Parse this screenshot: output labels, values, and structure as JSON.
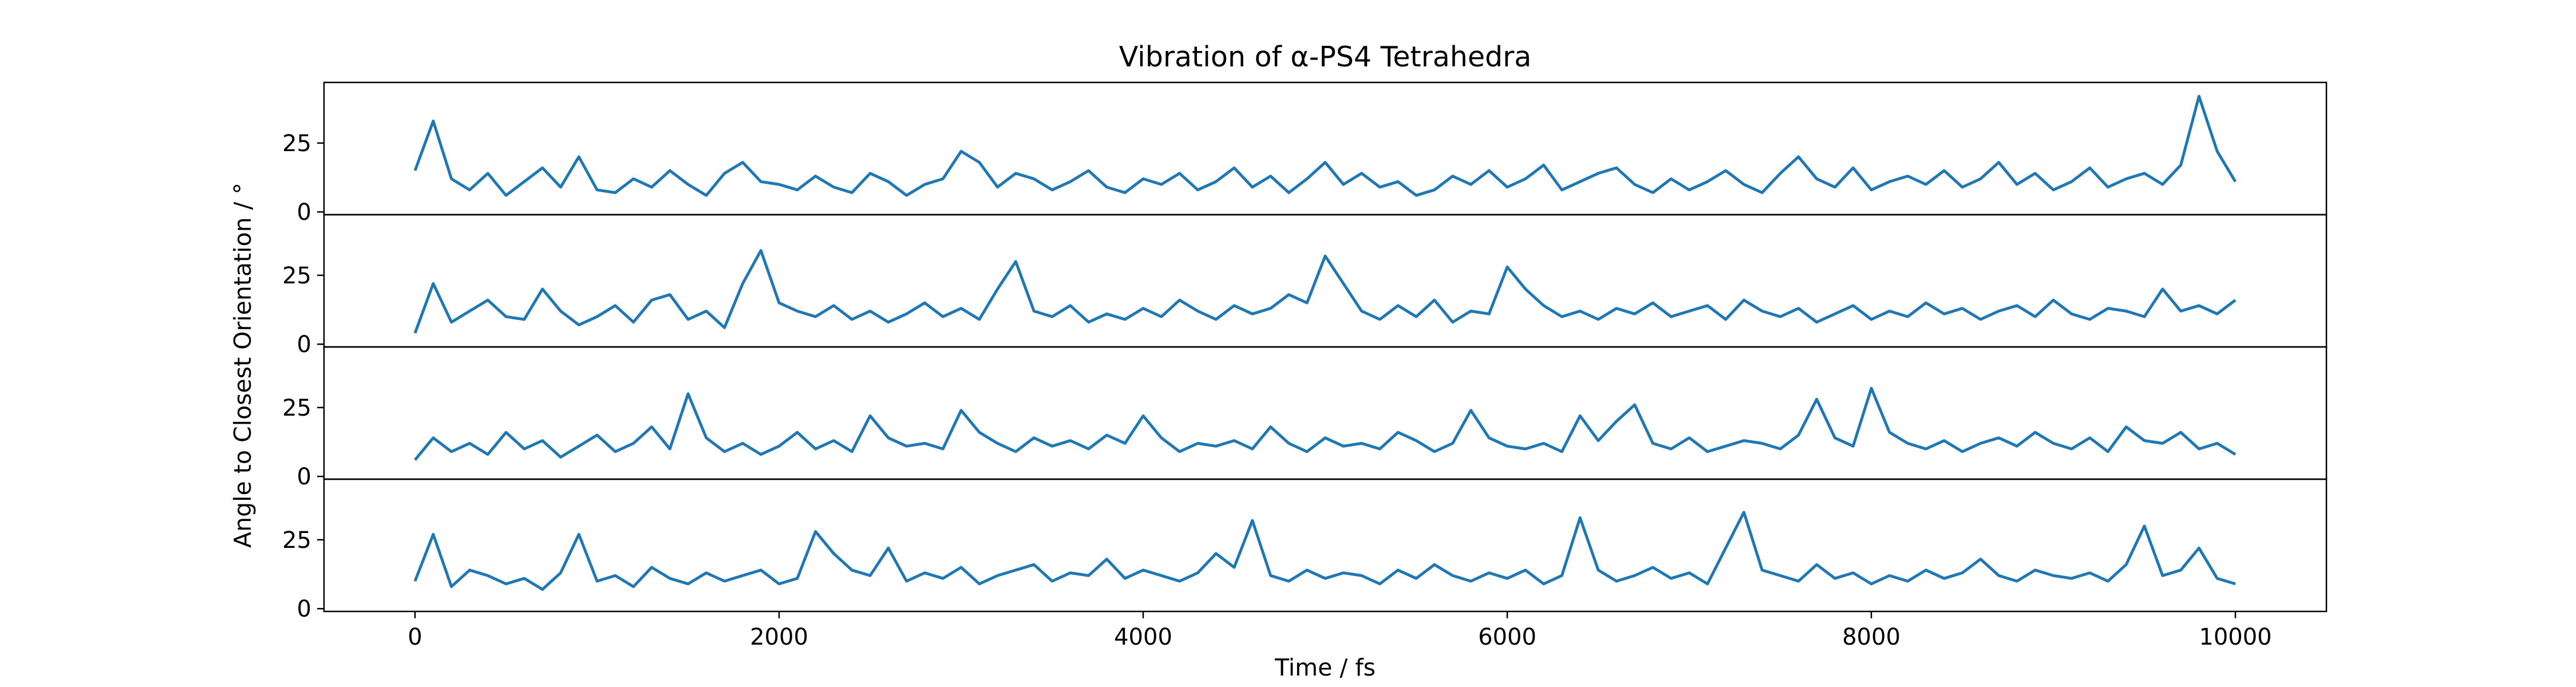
{
  "chart_data": {
    "type": "line",
    "title": "Vibration of α-PS4 Tetrahedra",
    "xlabel": "Time / fs",
    "ylabel": "Angle to Closest Orientation / °",
    "xlim": [
      -500,
      10500
    ],
    "ylim": [
      -1,
      47
    ],
    "xticks": [
      "0",
      "2000",
      "4000",
      "6000",
      "8000",
      "10000"
    ],
    "xtick_values": [
      0,
      2000,
      4000,
      6000,
      8000,
      10000
    ],
    "yticks": [
      "0",
      "25"
    ],
    "ytick_values": [
      0,
      25
    ],
    "grid": false,
    "line_color": "#1f77b4",
    "series": [
      {
        "x": [
          0,
          100,
          200,
          300,
          400,
          500,
          600,
          700,
          800,
          900,
          1000,
          1100,
          1200,
          1300,
          1400,
          1500,
          1600,
          1700,
          1800,
          1900,
          2000,
          2100,
          2200,
          2300,
          2400,
          2500,
          2600,
          2700,
          2800,
          2900,
          3000,
          3100,
          3200,
          3300,
          3400,
          3500,
          3600,
          3700,
          3800,
          3900,
          4000,
          4100,
          4200,
          4300,
          4400,
          4500,
          4600,
          4700,
          4800,
          4900,
          5000,
          5100,
          5200,
          5300,
          5400,
          5500,
          5600,
          5700,
          5800,
          5900,
          6000,
          6100,
          6200,
          6300,
          6400,
          6500,
          6600,
          6700,
          6800,
          6900,
          7000,
          7100,
          7200,
          7300,
          7400,
          7500,
          7600,
          7700,
          7800,
          7900,
          8000,
          8100,
          8200,
          8300,
          8400,
          8500,
          8600,
          8700,
          8800,
          8900,
          9000,
          9100,
          9200,
          9300,
          9400,
          9500,
          9600,
          9700,
          9800,
          9900,
          10000
        ],
        "y": [
          15,
          33,
          12,
          8,
          14,
          6,
          11,
          16,
          9,
          20,
          8,
          7,
          12,
          9,
          15,
          10,
          6,
          14,
          18,
          11,
          10,
          8,
          13,
          9,
          7,
          14,
          11,
          6,
          10,
          12,
          22,
          18,
          9,
          14,
          12,
          8,
          11,
          15,
          9,
          7,
          12,
          10,
          14,
          8,
          11,
          16,
          9,
          13,
          7,
          12,
          18,
          10,
          14,
          9,
          11,
          6,
          8,
          13,
          10,
          15,
          9,
          12,
          17,
          8,
          11,
          14,
          16,
          10,
          7,
          12,
          8,
          11,
          15,
          10,
          7,
          14,
          20,
          12,
          9,
          16,
          8,
          11,
          13,
          10,
          15,
          9,
          12,
          18,
          10,
          14,
          8,
          11,
          16,
          9,
          12,
          14,
          10,
          17,
          42,
          22,
          11
        ]
      },
      {
        "x": [
          0,
          100,
          200,
          300,
          400,
          500,
          600,
          700,
          800,
          900,
          1000,
          1100,
          1200,
          1300,
          1400,
          1500,
          1600,
          1700,
          1800,
          1900,
          2000,
          2100,
          2200,
          2300,
          2400,
          2500,
          2600,
          2700,
          2800,
          2900,
          3000,
          3100,
          3200,
          3300,
          3400,
          3500,
          3600,
          3700,
          3800,
          3900,
          4000,
          4100,
          4200,
          4300,
          4400,
          4500,
          4600,
          4700,
          4800,
          4900,
          5000,
          5100,
          5200,
          5300,
          5400,
          5500,
          5600,
          5700,
          5800,
          5900,
          6000,
          6100,
          6200,
          6300,
          6400,
          6500,
          6600,
          6700,
          6800,
          6900,
          7000,
          7100,
          7200,
          7300,
          7400,
          7500,
          7600,
          7700,
          7800,
          7900,
          8000,
          8100,
          8200,
          8300,
          8400,
          8500,
          8600,
          8700,
          8800,
          8900,
          9000,
          9100,
          9200,
          9300,
          9400,
          9500,
          9600,
          9700,
          9800,
          9900,
          10000
        ],
        "y": [
          4,
          22,
          8,
          12,
          16,
          10,
          9,
          20,
          12,
          7,
          10,
          14,
          8,
          16,
          18,
          9,
          12,
          6,
          22,
          34,
          15,
          12,
          10,
          14,
          9,
          12,
          8,
          11,
          15,
          10,
          13,
          9,
          20,
          30,
          12,
          10,
          14,
          8,
          11,
          9,
          13,
          10,
          16,
          12,
          9,
          14,
          11,
          13,
          18,
          15,
          32,
          22,
          12,
          9,
          14,
          10,
          16,
          8,
          12,
          11,
          28,
          20,
          14,
          10,
          12,
          9,
          13,
          11,
          15,
          10,
          12,
          14,
          9,
          16,
          12,
          10,
          13,
          8,
          11,
          14,
          9,
          12,
          10,
          15,
          11,
          13,
          9,
          12,
          14,
          10,
          16,
          11,
          9,
          13,
          12,
          10,
          20,
          12,
          14,
          11,
          16
        ]
      },
      {
        "x": [
          0,
          100,
          200,
          300,
          400,
          500,
          600,
          700,
          800,
          900,
          1000,
          1100,
          1200,
          1300,
          1400,
          1500,
          1600,
          1700,
          1800,
          1900,
          2000,
          2100,
          2200,
          2300,
          2400,
          2500,
          2600,
          2700,
          2800,
          2900,
          3000,
          3100,
          3200,
          3300,
          3400,
          3500,
          3600,
          3700,
          3800,
          3900,
          4000,
          4100,
          4200,
          4300,
          4400,
          4500,
          4600,
          4700,
          4800,
          4900,
          5000,
          5100,
          5200,
          5300,
          5400,
          5500,
          5600,
          5700,
          5800,
          5900,
          6000,
          6100,
          6200,
          6300,
          6400,
          6500,
          6600,
          6700,
          6800,
          6900,
          7000,
          7100,
          7200,
          7300,
          7400,
          7500,
          7600,
          7700,
          7800,
          7900,
          8000,
          8100,
          8200,
          8300,
          8400,
          8500,
          8600,
          8700,
          8800,
          8900,
          9000,
          9100,
          9200,
          9300,
          9400,
          9500,
          9600,
          9700,
          9800,
          9900,
          10000
        ],
        "y": [
          6,
          14,
          9,
          12,
          8,
          16,
          10,
          13,
          7,
          11,
          15,
          9,
          12,
          18,
          10,
          30,
          14,
          9,
          12,
          8,
          11,
          16,
          10,
          13,
          9,
          22,
          14,
          11,
          12,
          10,
          24,
          16,
          12,
          9,
          14,
          11,
          13,
          10,
          15,
          12,
          22,
          14,
          9,
          12,
          11,
          13,
          10,
          18,
          12,
          9,
          14,
          11,
          12,
          10,
          16,
          13,
          9,
          12,
          24,
          14,
          11,
          10,
          12,
          9,
          22,
          13,
          20,
          26,
          12,
          10,
          14,
          9,
          11,
          13,
          12,
          10,
          15,
          28,
          14,
          11,
          32,
          16,
          12,
          10,
          13,
          9,
          12,
          14,
          11,
          16,
          12,
          10,
          14,
          9,
          18,
          13,
          12,
          16,
          10,
          12,
          8
        ]
      },
      {
        "x": [
          0,
          100,
          200,
          300,
          400,
          500,
          600,
          700,
          800,
          900,
          1000,
          1100,
          1200,
          1300,
          1400,
          1500,
          1600,
          1700,
          1800,
          1900,
          2000,
          2100,
          2200,
          2300,
          2400,
          2500,
          2600,
          2700,
          2800,
          2900,
          3000,
          3100,
          3200,
          3300,
          3400,
          3500,
          3600,
          3700,
          3800,
          3900,
          4000,
          4100,
          4200,
          4300,
          4400,
          4500,
          4600,
          4700,
          4800,
          4900,
          5000,
          5100,
          5200,
          5300,
          5400,
          5500,
          5600,
          5700,
          5800,
          5900,
          6000,
          6100,
          6200,
          6300,
          6400,
          6500,
          6600,
          6700,
          6800,
          6900,
          7000,
          7100,
          7200,
          7300,
          7400,
          7500,
          7600,
          7700,
          7800,
          7900,
          8000,
          8100,
          8200,
          8300,
          8400,
          8500,
          8600,
          8700,
          8800,
          8900,
          9000,
          9100,
          9200,
          9300,
          9400,
          9500,
          9600,
          9700,
          9800,
          9900,
          10000
        ],
        "y": [
          10,
          27,
          8,
          14,
          12,
          9,
          11,
          7,
          13,
          27,
          10,
          12,
          8,
          15,
          11,
          9,
          13,
          10,
          12,
          14,
          9,
          11,
          28,
          20,
          14,
          12,
          22,
          10,
          13,
          11,
          15,
          9,
          12,
          14,
          16,
          10,
          13,
          12,
          18,
          11,
          14,
          12,
          10,
          13,
          20,
          15,
          32,
          12,
          10,
          14,
          11,
          13,
          12,
          9,
          14,
          11,
          16,
          12,
          10,
          13,
          11,
          14,
          9,
          12,
          33,
          14,
          10,
          12,
          15,
          11,
          13,
          9,
          22,
          35,
          14,
          12,
          10,
          16,
          11,
          13,
          9,
          12,
          10,
          14,
          11,
          13,
          18,
          12,
          10,
          14,
          12,
          11,
          13,
          10,
          16,
          30,
          12,
          14,
          22,
          11,
          9
        ]
      }
    ]
  }
}
